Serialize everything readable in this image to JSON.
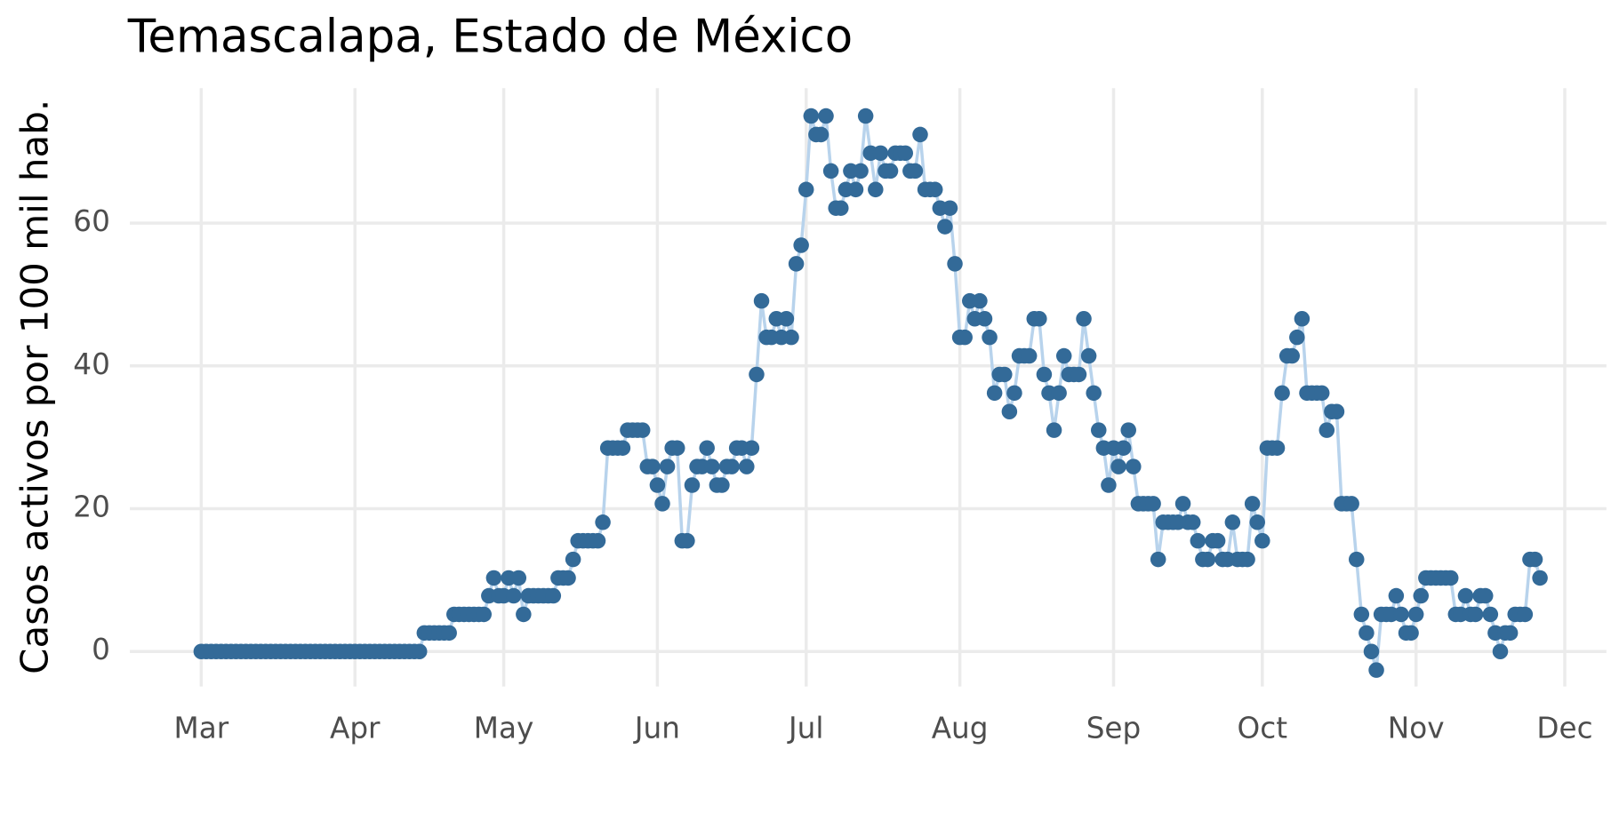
{
  "chart_data": {
    "type": "line",
    "title": "Temascalapa, Estado de México",
    "y_label": "Casos activos por 100 mil hab.",
    "x": [
      0,
      1,
      2,
      3,
      4,
      5,
      6,
      7,
      8,
      9,
      10,
      11,
      12,
      13,
      14,
      15,
      16,
      17,
      18,
      19,
      20,
      21,
      22,
      23,
      24,
      25,
      26,
      27,
      28,
      29,
      30,
      31,
      32,
      33,
      34,
      35,
      36,
      37,
      38,
      39,
      40,
      41,
      42,
      43,
      44,
      45,
      46,
      47,
      48,
      49,
      50,
      51,
      52,
      53,
      54,
      55,
      56,
      57,
      58,
      59,
      60,
      61,
      62,
      63,
      64,
      65,
      66,
      67,
      68,
      69,
      70,
      71,
      72,
      73,
      74,
      75,
      76,
      77,
      78,
      79,
      80,
      81,
      82,
      83,
      84,
      85,
      86,
      87,
      88,
      89,
      90,
      91,
      92,
      93,
      94,
      95,
      96,
      97,
      98,
      99,
      100,
      101,
      102,
      103,
      104,
      105,
      106,
      107,
      108,
      109,
      110,
      111,
      112,
      113,
      114,
      115,
      116,
      117,
      118,
      119,
      120,
      121,
      122,
      123,
      124,
      125,
      126,
      127,
      128,
      129,
      130,
      131,
      132,
      133,
      134,
      135,
      136,
      137,
      138,
      139,
      140,
      141,
      142,
      143,
      144,
      145,
      146,
      147,
      148,
      149,
      150,
      151,
      152,
      153,
      154,
      155,
      156,
      157,
      158,
      159,
      160,
      161,
      162,
      163,
      164,
      165,
      166,
      167,
      168,
      169,
      170,
      171,
      172,
      173,
      174,
      175,
      176,
      177,
      178,
      179,
      180,
      181,
      182,
      183,
      184,
      185,
      186,
      187,
      188,
      189,
      190,
      191,
      192,
      193,
      194,
      195,
      196,
      197,
      198,
      199,
      200,
      201,
      202,
      203,
      204,
      205,
      206,
      207,
      208,
      209,
      210,
      211,
      212,
      213,
      214,
      215,
      216,
      217,
      218,
      219,
      220,
      221,
      222,
      223,
      224,
      225,
      226,
      227,
      228,
      229,
      230,
      231,
      232,
      233,
      234,
      235,
      236,
      237,
      238,
      239,
      240,
      241,
      242,
      243,
      244,
      245,
      246,
      247,
      248,
      249,
      250,
      251,
      252,
      253,
      254,
      255,
      256,
      257,
      258,
      259,
      260,
      261,
      262,
      263,
      264,
      265,
      266,
      267,
      268,
      269,
      270
    ],
    "values": [
      0,
      0,
      0,
      0,
      0,
      0,
      0,
      0,
      0,
      0,
      0,
      0,
      0,
      0,
      0,
      0,
      0,
      0,
      0,
      0,
      0,
      0,
      0,
      0,
      0,
      0,
      0,
      0,
      0,
      0,
      0,
      0,
      0,
      0,
      0,
      0,
      0,
      0,
      0,
      0,
      0,
      0,
      0,
      0,
      0,
      2.6,
      2.6,
      2.6,
      2.6,
      2.6,
      2.6,
      5.2,
      5.2,
      5.2,
      5.2,
      5.2,
      5.2,
      5.2,
      7.8,
      10.3,
      7.8,
      7.8,
      10.3,
      7.8,
      10.3,
      5.2,
      7.8,
      7.8,
      7.8,
      7.8,
      7.8,
      7.8,
      10.3,
      10.3,
      10.3,
      12.9,
      15.5,
      15.5,
      15.5,
      15.5,
      15.5,
      18.1,
      28.5,
      28.5,
      28.5,
      28.5,
      31.0,
      31.0,
      31.0,
      31.0,
      25.9,
      25.9,
      23.3,
      20.7,
      25.9,
      28.5,
      28.5,
      15.5,
      15.5,
      23.3,
      25.9,
      25.9,
      28.5,
      25.9,
      23.3,
      23.3,
      25.9,
      25.9,
      28.5,
      28.5,
      25.9,
      28.5,
      38.8,
      49.1,
      44.0,
      44.0,
      46.6,
      44.0,
      46.6,
      44.0,
      54.3,
      56.9,
      64.7,
      75.0,
      72.4,
      72.4,
      75.0,
      67.3,
      62.1,
      62.1,
      64.7,
      67.3,
      64.7,
      67.3,
      75.0,
      69.8,
      64.7,
      69.8,
      67.3,
      67.3,
      69.8,
      69.8,
      69.8,
      67.3,
      67.3,
      72.4,
      64.7,
      64.7,
      64.7,
      62.1,
      59.5,
      62.1,
      54.3,
      44.0,
      44.0,
      49.1,
      46.6,
      49.1,
      46.6,
      44.0,
      36.2,
      38.8,
      38.8,
      33.6,
      36.2,
      41.4,
      41.4,
      41.4,
      46.6,
      46.6,
      38.8,
      36.2,
      31.0,
      36.2,
      41.4,
      38.8,
      38.8,
      38.8,
      46.6,
      41.4,
      36.2,
      31.0,
      28.5,
      23.3,
      28.5,
      25.9,
      28.5,
      31.0,
      25.9,
      20.7,
      20.7,
      20.7,
      20.7,
      12.9,
      18.1,
      18.1,
      18.1,
      18.1,
      20.7,
      18.1,
      18.1,
      15.5,
      12.9,
      12.9,
      15.5,
      15.5,
      12.9,
      12.9,
      18.1,
      12.9,
      12.9,
      12.9,
      20.7,
      18.1,
      15.5,
      28.5,
      28.5,
      28.5,
      36.2,
      41.4,
      41.4,
      44.0,
      46.6,
      36.2,
      36.2,
      36.2,
      36.2,
      31.0,
      33.6,
      33.6,
      20.7,
      20.7,
      20.7,
      12.9,
      5.2,
      2.6,
      0,
      -2.6,
      5.2,
      5.2,
      5.2,
      7.8,
      5.2,
      2.6,
      2.6,
      5.2,
      7.8,
      10.3,
      10.3,
      10.3,
      10.3,
      10.3,
      10.3,
      5.2,
      5.2,
      7.8,
      5.2,
      5.2,
      7.8,
      7.8,
      5.2,
      2.6,
      0,
      2.6,
      2.6,
      5.2,
      5.2,
      5.2,
      12.9,
      12.9,
      10.3
    ],
    "color": "#336a98",
    "line_color": "#b8d3ec",
    "xlim": [
      -14.4,
      283.4
    ],
    "xticks": [
      {
        "value": 0,
        "label": "Mar"
      },
      {
        "value": 31,
        "label": "Apr"
      },
      {
        "value": 61,
        "label": "May"
      },
      {
        "value": 92,
        "label": "Jun"
      },
      {
        "value": 122,
        "label": "Jul"
      },
      {
        "value": 153,
        "label": "Aug"
      },
      {
        "value": 184,
        "label": "Sep"
      },
      {
        "value": 214,
        "label": "Oct"
      },
      {
        "value": 245,
        "label": "Nov"
      },
      {
        "value": 275,
        "label": "Dec"
      }
    ],
    "ylim": [
      -4.9,
      78.9
    ],
    "yticks": [
      0,
      20,
      40,
      60
    ],
    "grid": true
  }
}
